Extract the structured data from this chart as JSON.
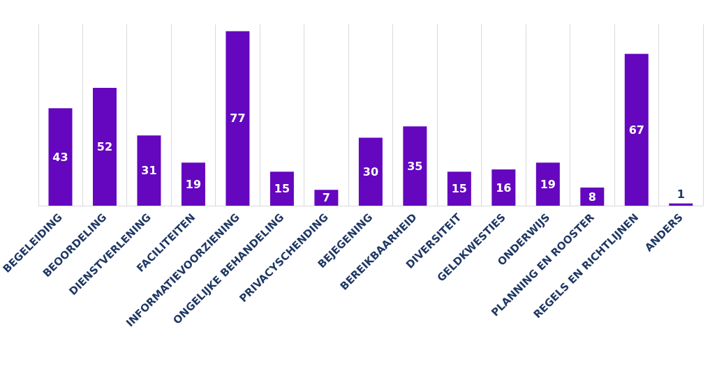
{
  "chart_data": {
    "type": "bar",
    "categories": [
      "BEGELEIDING",
      "BEOORDELING",
      "DIENSTVERLENING",
      "FACILITEITEN",
      "INFORMATIEVOORZIENING",
      "ONGELIJKE BEHANDELING",
      "PRIVACYSCHENDING",
      "BEJEGENING",
      "BEREIKBAARHEID",
      "DIVERSITEIT",
      "GELDKWESTIES",
      "ONDERWIJS",
      "PLANNING EN ROOSTER",
      "REGELS EN RICHTLIJNEN",
      "ANDERS"
    ],
    "values": [
      43,
      52,
      31,
      19,
      77,
      15,
      7,
      30,
      35,
      15,
      16,
      19,
      8,
      67,
      1
    ],
    "color": "#6407bf",
    "data_labels": true,
    "grid": "x"
  }
}
